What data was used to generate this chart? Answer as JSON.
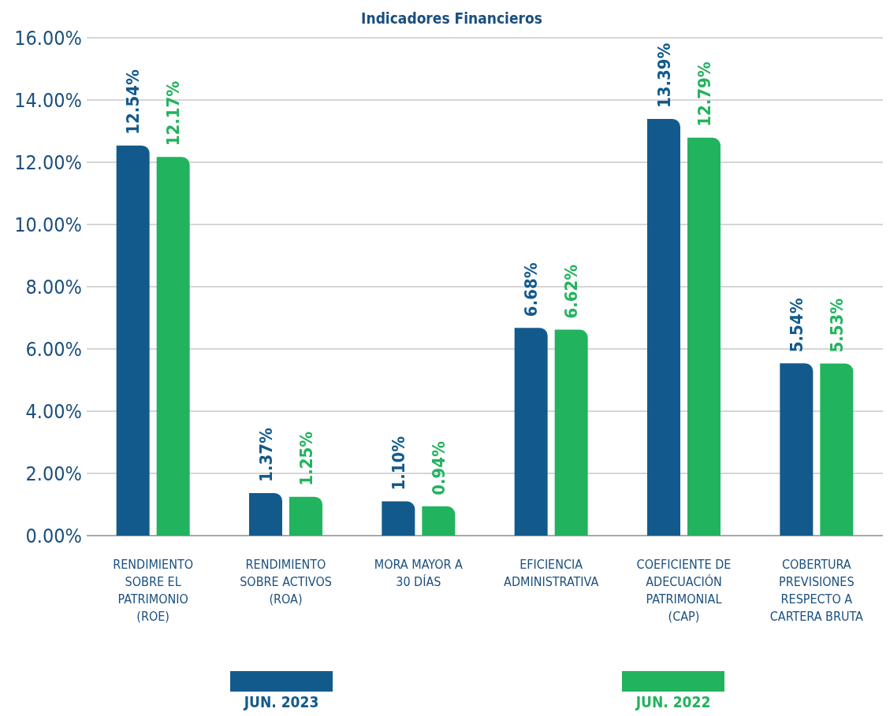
{
  "chart_data": {
    "type": "bar",
    "title": "Indicadores Financieros",
    "categories": [
      "RENDIMIENTO SOBRE EL PATRIMONIO (ROE)",
      "RENDIMIENTO SOBRE ACTIVOS (ROA)",
      "MORA MAYOR A 30 DÍAS",
      "EFICIENCIA ADMINISTRATIVA",
      "COEFICIENTE DE ADECUACIÓN PATRIMONIAL (CAP)",
      "COBERTURA PREVISIONES RESPECTO A CARTERA BRUTA"
    ],
    "series": [
      {
        "name": "JUN. 2023",
        "color": "#135a8c",
        "values": [
          12.54,
          1.37,
          1.1,
          6.68,
          13.39,
          5.54
        ],
        "value_labels": [
          "12.54%",
          "1.37%",
          "1.10%",
          "6.68%",
          "13.39%",
          "5.54%"
        ]
      },
      {
        "name": "JUN. 2022",
        "color": "#22b35e",
        "values": [
          12.17,
          1.25,
          0.94,
          6.62,
          12.79,
          5.53
        ],
        "value_labels": [
          "12.17%",
          "1.25%",
          "0.94%",
          "6.62%",
          "12.79%",
          "5.53%"
        ]
      }
    ],
    "ylim": [
      0,
      16
    ],
    "yticks": [
      {
        "value": 0,
        "label": "0.00%"
      },
      {
        "value": 2,
        "label": "2.00%"
      },
      {
        "value": 4,
        "label": "4.00%"
      },
      {
        "value": 6,
        "label": "6.00%"
      },
      {
        "value": 8,
        "label": "8.00%"
      },
      {
        "value": 10,
        "label": "10.00%"
      },
      {
        "value": 12,
        "label": "12.00%"
      },
      {
        "value": 14,
        "label": "14.00%"
      },
      {
        "value": 16,
        "label": "16.00%"
      }
    ],
    "grid": "y",
    "legend": "bottom"
  }
}
